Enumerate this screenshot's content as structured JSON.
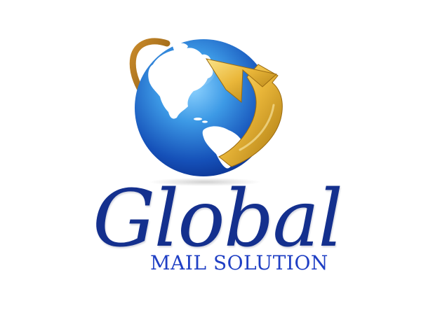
{
  "brand": {
    "name": "Global",
    "tagline": "MAIL SOLUTION"
  },
  "icons": {
    "globe": "globe-icon",
    "arrow": "orbit-arrow-icon"
  },
  "colors": {
    "ocean_light": "#5fb8f0",
    "ocean_dark": "#0a2f8c",
    "land": "#ffffff",
    "arrow_light": "#f7d25a",
    "arrow_dark": "#b8860b",
    "brand_text": "#14308e",
    "tagline_text": "#1f3fc4"
  }
}
